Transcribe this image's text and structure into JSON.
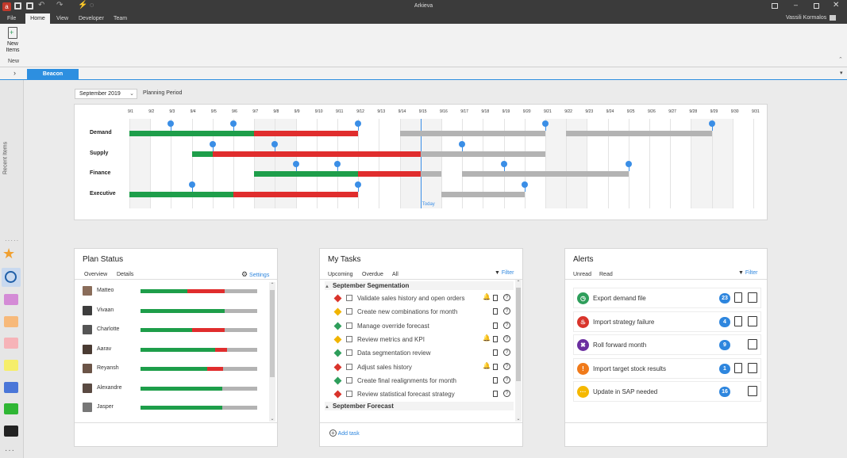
{
  "app": {
    "title": "Arkieva",
    "user": "Vassili Kormalos"
  },
  "menu": [
    "File",
    "Home",
    "View",
    "Developer",
    "Team"
  ],
  "ribbon": {
    "new_items": "New Items",
    "group": "New"
  },
  "tab": {
    "name": "Beacon"
  },
  "sidebar": {
    "recent": "Recent Items"
  },
  "period": {
    "value": "September 2019",
    "label": "Planning Period"
  },
  "timeline": {
    "dates": [
      "9/1",
      "9/2",
      "9/3",
      "9/4",
      "9/5",
      "9/6",
      "9/7",
      "9/8",
      "9/9",
      "9/10",
      "9/11",
      "9/12",
      "9/13",
      "9/14",
      "9/15",
      "9/16",
      "9/17",
      "9/18",
      "9/19",
      "9/20",
      "9/21",
      "9/22",
      "9/23",
      "9/24",
      "9/25",
      "9/26",
      "9/27",
      "9/28",
      "9/29",
      "9/30",
      "9/31"
    ],
    "today_label": "Today",
    "today_index": 14,
    "rows": [
      {
        "name": "Demand",
        "segments": [
          {
            "from": 0,
            "to": 6,
            "color": "green"
          },
          {
            "from": 6,
            "to": 11,
            "color": "red"
          },
          {
            "from": 13,
            "to": 20,
            "color": "gray"
          },
          {
            "from": 21,
            "to": 28,
            "color": "gray"
          }
        ],
        "pins": [
          2,
          5,
          11,
          20,
          28
        ]
      },
      {
        "name": "Supply",
        "segments": [
          {
            "from": 3,
            "to": 4,
            "color": "green"
          },
          {
            "from": 4,
            "to": 14,
            "color": "red"
          },
          {
            "from": 14,
            "to": 20,
            "color": "gray"
          }
        ],
        "pins": [
          4,
          7,
          16
        ]
      },
      {
        "name": "Finance",
        "segments": [
          {
            "from": 6,
            "to": 11,
            "color": "green"
          },
          {
            "from": 11,
            "to": 14,
            "color": "red"
          },
          {
            "from": 14,
            "to": 15,
            "color": "gray"
          },
          {
            "from": 16,
            "to": 24,
            "color": "gray"
          }
        ],
        "pins": [
          8,
          10,
          18,
          24
        ]
      },
      {
        "name": "Executive",
        "segments": [
          {
            "from": 0,
            "to": 5,
            "color": "green"
          },
          {
            "from": 5,
            "to": 11,
            "color": "red"
          },
          {
            "from": 15,
            "to": 19,
            "color": "gray"
          }
        ],
        "pins": [
          3,
          11,
          19
        ]
      }
    ]
  },
  "plan_status": {
    "title": "Plan Status",
    "tabs": [
      "Overview",
      "Details"
    ],
    "settings": "Settings",
    "people": [
      {
        "name": "Matteo",
        "green": 0.4,
        "red": 0.32
      },
      {
        "name": "Vivaan",
        "green": 0.72,
        "red": 0
      },
      {
        "name": "Charlotte",
        "green": 0.44,
        "red": 0.28
      },
      {
        "name": "Aarav",
        "green": 0.64,
        "red": 0.1
      },
      {
        "name": "Reyansh",
        "green": 0.57,
        "red": 0.14
      },
      {
        "name": "Alexandre",
        "green": 0.7,
        "red": 0
      },
      {
        "name": "Jasper",
        "green": 0.7,
        "red": 0
      }
    ]
  },
  "tasks": {
    "title": "My Tasks",
    "tabs": [
      "Upcoming",
      "Overdue",
      "All"
    ],
    "filter": "Filter",
    "groups": [
      {
        "name": "September Segmentation",
        "items": [
          {
            "text": "Validate sales history and open orders",
            "pri": "red",
            "bell": true
          },
          {
            "text": "Create new combinations for month",
            "pri": "yellow",
            "bell": false
          },
          {
            "text": "Manage override forecast",
            "pri": "green",
            "bell": false
          },
          {
            "text": "Review metrics and KPI",
            "pri": "yellow",
            "bell": true
          },
          {
            "text": "Data segmentation review",
            "pri": "green",
            "bell": false
          },
          {
            "text": "Adjust sales history",
            "pri": "red",
            "bell": true
          },
          {
            "text": "Create final realignments for month",
            "pri": "green",
            "bell": false
          },
          {
            "text": "Review statistical forecast strategy",
            "pri": "red",
            "bell": false
          }
        ]
      },
      {
        "name": "September Forecast",
        "items": []
      }
    ],
    "add": "Add task"
  },
  "alerts": {
    "title": "Alerts",
    "tabs": [
      "Unread",
      "Read"
    ],
    "filter": "Filter",
    "items": [
      {
        "text": "Export demand file",
        "count": "23",
        "color": "#2e9e5b",
        "icon": "clock-icon",
        "doc": true
      },
      {
        "text": "Import strategy failure",
        "count": "4",
        "color": "#d9342b",
        "icon": "fire-icon",
        "doc": true
      },
      {
        "text": "Roll forward month",
        "count": "9",
        "color": "#6b2fa0",
        "icon": "tools-icon",
        "doc": false
      },
      {
        "text": "Import target stock results",
        "count": "1",
        "color": "#f07a1a",
        "icon": "warning-icon",
        "doc": true
      },
      {
        "text": "Update in SAP needed",
        "count": "16",
        "color": "#f5b800",
        "icon": "dots-icon",
        "doc": false
      }
    ]
  },
  "colors": {
    "green": "#1e9e4a",
    "red": "#e02d2d",
    "gray": "#b3b3b3",
    "blue": "#3a8ee6"
  }
}
